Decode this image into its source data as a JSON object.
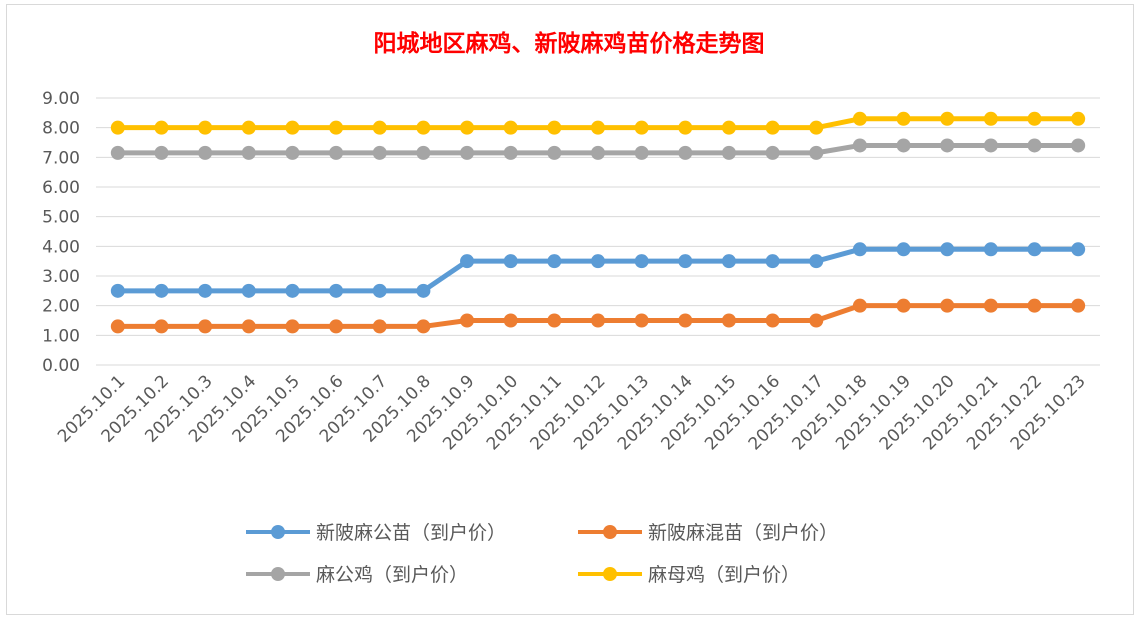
{
  "chart_data": {
    "type": "line",
    "title": "阳城地区麻鸡、新陂麻鸡苗价格走势图",
    "categories": [
      "2025.10.1",
      "2025.10.2",
      "2025.10.3",
      "2025.10.4",
      "2025.10.5",
      "2025.10.6",
      "2025.10.7",
      "2025.10.8",
      "2025.10.9",
      "2025.10.10",
      "2025.10.11",
      "2025.10.12",
      "2025.10.13",
      "2025.10.14",
      "2025.10.15",
      "2025.10.16",
      "2025.10.17",
      "2025.10.18",
      "2025.10.19",
      "2025.10.20",
      "2025.10.21",
      "2025.10.22",
      "2025.10.23"
    ],
    "yticks": [
      "0.00",
      "1.00",
      "2.00",
      "3.00",
      "4.00",
      "5.00",
      "6.00",
      "7.00",
      "8.00",
      "9.00"
    ],
    "ylim": [
      0,
      9
    ],
    "grid": true,
    "legend_position": "bottom",
    "series": [
      {
        "name": "新陂麻公苗（到户价）",
        "color": "#5b9bd5",
        "values": [
          2.5,
          2.5,
          2.5,
          2.5,
          2.5,
          2.5,
          2.5,
          2.5,
          3.5,
          3.5,
          3.5,
          3.5,
          3.5,
          3.5,
          3.5,
          3.5,
          3.5,
          3.9,
          3.9,
          3.9,
          3.9,
          3.9,
          3.9
        ]
      },
      {
        "name": "新陂麻混苗（到户价）",
        "color": "#ed7d31",
        "values": [
          1.3,
          1.3,
          1.3,
          1.3,
          1.3,
          1.3,
          1.3,
          1.3,
          1.5,
          1.5,
          1.5,
          1.5,
          1.5,
          1.5,
          1.5,
          1.5,
          1.5,
          2.0,
          2.0,
          2.0,
          2.0,
          2.0,
          2.0
        ]
      },
      {
        "name": "麻公鸡（到户价）",
        "color": "#a5a5a5",
        "values": [
          7.15,
          7.15,
          7.15,
          7.15,
          7.15,
          7.15,
          7.15,
          7.15,
          7.15,
          7.15,
          7.15,
          7.15,
          7.15,
          7.15,
          7.15,
          7.15,
          7.15,
          7.4,
          7.4,
          7.4,
          7.4,
          7.4,
          7.4
        ]
      },
      {
        "name": "麻母鸡（到户价）",
        "color": "#ffc000",
        "values": [
          8.0,
          8.0,
          8.0,
          8.0,
          8.0,
          8.0,
          8.0,
          8.0,
          8.0,
          8.0,
          8.0,
          8.0,
          8.0,
          8.0,
          8.0,
          8.0,
          8.0,
          8.3,
          8.3,
          8.3,
          8.3,
          8.3,
          8.3
        ]
      }
    ]
  }
}
